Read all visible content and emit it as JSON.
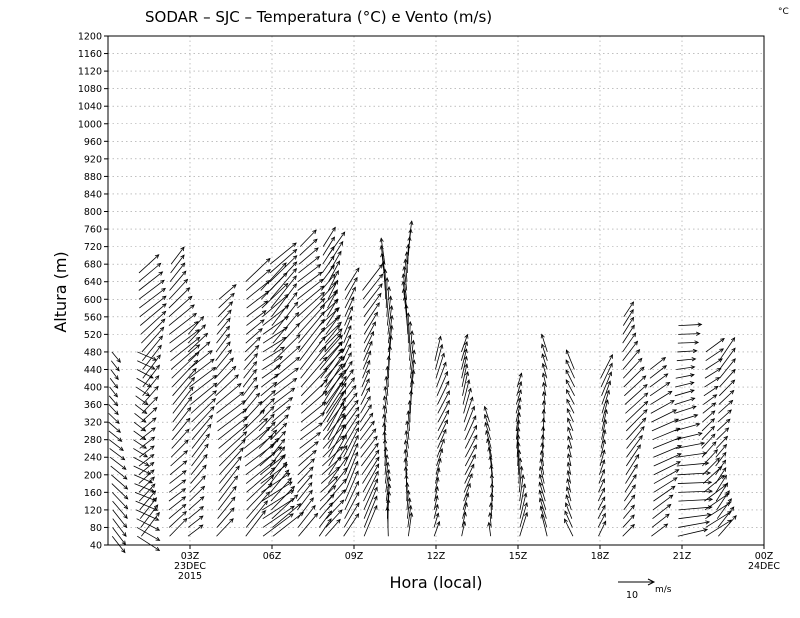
{
  "chart_data": {
    "type": "wind-barb-timeheight",
    "title": "SODAR – SJC – Temperatura (°C) e Vento (m/s)",
    "corner_unit": "°C",
    "xlabel": "Hora (local)",
    "ylabel": "Altura (m)",
    "ylim": [
      40,
      1200
    ],
    "y_ticks": [
      40,
      80,
      120,
      160,
      200,
      240,
      280,
      320,
      360,
      400,
      440,
      480,
      520,
      560,
      600,
      640,
      680,
      720,
      760,
      800,
      840,
      880,
      920,
      960,
      1000,
      1040,
      1080,
      1120,
      1160,
      1200
    ],
    "x_range_hours": [
      0,
      24
    ],
    "x_ticks": [
      {
        "hour": 3,
        "line1": "03Z",
        "line2": "23DEC",
        "line3": "2015"
      },
      {
        "hour": 6,
        "line1": "06Z",
        "line2": "",
        "line3": ""
      },
      {
        "hour": 9,
        "line1": "09Z",
        "line2": "",
        "line3": ""
      },
      {
        "hour": 12,
        "line1": "12Z",
        "line2": "",
        "line3": ""
      },
      {
        "hour": 15,
        "line1": "15Z",
        "line2": "",
        "line3": ""
      },
      {
        "hour": 18,
        "line1": "18Z",
        "line2": "",
        "line3": ""
      },
      {
        "hour": 21,
        "line1": "21Z",
        "line2": "",
        "line3": ""
      },
      {
        "hour": 24,
        "line1": "00Z",
        "line2": "24DEC",
        "line3": ""
      }
    ],
    "grid": true,
    "reference_vector": {
      "value": 10,
      "unit": "m/s"
    },
    "profiles": [
      {
        "hour": 0.1,
        "top": 480,
        "dir": 315,
        "speed": 6
      },
      {
        "hour": 1.0,
        "top": 480,
        "dir": 300,
        "speed": 7
      },
      {
        "hour": 1.2,
        "top": 660,
        "dir": 225,
        "speed": 9
      },
      {
        "hour": 2.3,
        "top": 680,
        "dir": 225,
        "speed": 10
      },
      {
        "hour": 3.0,
        "top": 520,
        "dir": 225,
        "speed": 9
      },
      {
        "hour": 4.0,
        "top": 600,
        "dir": 225,
        "speed": 10
      },
      {
        "hour": 5.0,
        "top": 640,
        "dir": 225,
        "speed": 10
      },
      {
        "hour": 5.6,
        "top": 620,
        "dir": 230,
        "speed": 10
      },
      {
        "hour": 6.0,
        "top": 680,
        "dir": 225,
        "speed": 11
      },
      {
        "hour": 7.0,
        "top": 720,
        "dir": 225,
        "speed": 11
      },
      {
        "hour": 7.8,
        "top": 720,
        "dir": 220,
        "speed": 10
      },
      {
        "hour": 8.0,
        "top": 700,
        "dir": 215,
        "speed": 10
      },
      {
        "hour": 8.6,
        "top": 620,
        "dir": 210,
        "speed": 9
      },
      {
        "hour": 9.3,
        "top": 620,
        "dir": 210,
        "speed": 9
      },
      {
        "hour": 10.2,
        "top": 680,
        "dir": 180,
        "speed": 8
      },
      {
        "hour": 11.0,
        "top": 740,
        "dir": 180,
        "speed": 8
      },
      {
        "hour": 12.0,
        "top": 460,
        "dir": 200,
        "speed": 7
      },
      {
        "hour": 13.0,
        "top": 480,
        "dir": 200,
        "speed": 7
      },
      {
        "hour": 14.0,
        "top": 320,
        "dir": 170,
        "speed": 5
      },
      {
        "hour": 15.0,
        "top": 400,
        "dir": 190,
        "speed": 7
      },
      {
        "hour": 16.0,
        "top": 480,
        "dir": 170,
        "speed": 6
      },
      {
        "hour": 17.0,
        "top": 440,
        "dir": 160,
        "speed": 6
      },
      {
        "hour": 18.0,
        "top": 420,
        "dir": 200,
        "speed": 7
      },
      {
        "hour": 18.9,
        "top": 560,
        "dir": 220,
        "speed": 8
      },
      {
        "hour": 19.9,
        "top": 440,
        "dir": 240,
        "speed": 8
      },
      {
        "hour": 20.8,
        "top": 540,
        "dir": 260,
        "speed": 9
      },
      {
        "hour": 21.8,
        "top": 480,
        "dir": 230,
        "speed": 8
      },
      {
        "hour": 22.3,
        "top": 460,
        "dir": 220,
        "speed": 8
      }
    ]
  }
}
